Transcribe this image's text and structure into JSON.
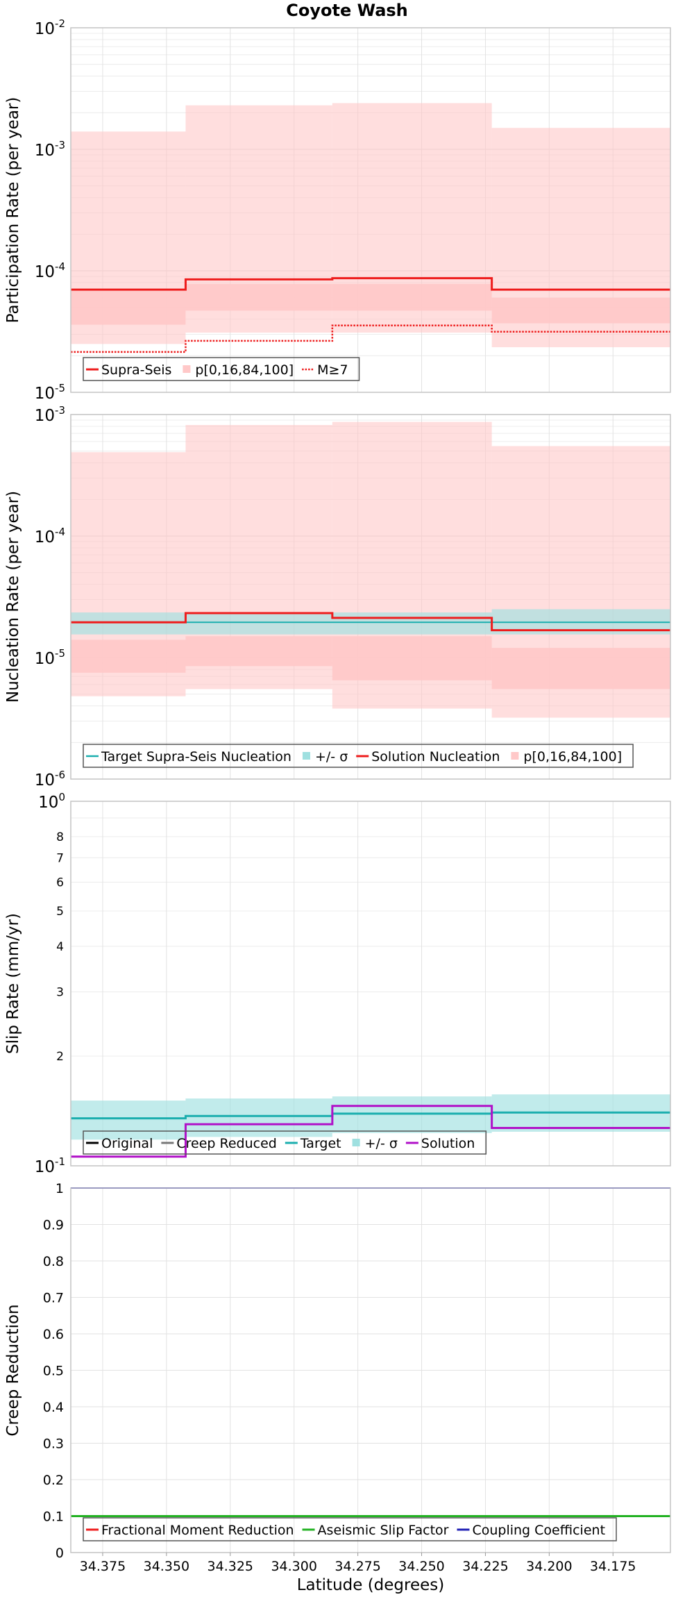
{
  "title": "Coyote Wash",
  "x_axis": {
    "label": "Latitude (degrees)",
    "reversed": true,
    "min": 34.1525,
    "max": 34.3875,
    "ticks": [
      34.375,
      34.35,
      34.325,
      34.3,
      34.275,
      34.25,
      34.225,
      34.2,
      34.175
    ],
    "tick_labels": [
      "34.375",
      "34.350",
      "34.325",
      "34.300",
      "34.275",
      "34.250",
      "34.225",
      "34.200",
      "34.175"
    ]
  },
  "colors": {
    "supra_seis": "#ee1c1c",
    "percentile_band": "#ffc8c8",
    "target": "#1aaeae",
    "target_band": "#9fe0e0",
    "solution_slip": "#b010c8",
    "aseismic": "#22b222",
    "coupling": "#1f1fb4",
    "original": "#000000",
    "creep_reduced": "#777777"
  },
  "segments": [
    {
      "x_start": 34.3875,
      "x_end": 34.3425
    },
    {
      "x_start": 34.3425,
      "x_end": 34.285
    },
    {
      "x_start": 34.285,
      "x_end": 34.2225
    },
    {
      "x_start": 34.2225,
      "x_end": 34.1525
    }
  ],
  "chart_data": [
    {
      "type": "line",
      "name": "participation",
      "ylabel": "Participation Rate (per year)",
      "yscale": "log",
      "ylim": [
        1e-05,
        0.01
      ],
      "y_tick_labels": [
        "10^-5",
        "10^-4",
        "10^-3",
        "10^-2"
      ],
      "legend": [
        "Supra-Seis",
        "p[0,16,84,100]",
        "M≥7"
      ],
      "series": [
        {
          "name": "Supra-Seis",
          "values": [
            7e-05,
            8.5e-05,
            8.7e-05,
            7e-05
          ]
        },
        {
          "name": "M≥7",
          "values": [
            2.15e-05,
            2.65e-05,
            3.55e-05,
            3.15e-05
          ]
        }
      ],
      "band_outer": {
        "low": [
          2.5e-05,
          3.1e-05,
          3.1e-05,
          2.35e-05
        ],
        "high": [
          0.0014,
          0.0023,
          0.0024,
          0.0015
        ]
      },
      "band_inner": {
        "low": [
          3.6e-05,
          4.7e-05,
          4.7e-05,
          3.7e-05
        ],
        "high": [
          7e-05,
          7.8e-05,
          7.8e-05,
          6e-05
        ]
      }
    },
    {
      "type": "line",
      "name": "nucleation",
      "ylabel": "Nucleation Rate (per year)",
      "yscale": "log",
      "ylim": [
        1e-06,
        0.001
      ],
      "y_tick_labels": [
        "10^-6",
        "10^-5",
        "10^-4",
        "10^-3"
      ],
      "legend": [
        "Target Supra-Seis Nucleation",
        "+/- σ",
        "Solution Nucleation",
        "p[0,16,84,100]"
      ],
      "series": [
        {
          "name": "Target Supra-Seis Nucleation",
          "values": [
            1.95e-05,
            1.95e-05,
            1.95e-05,
            1.95e-05
          ]
        },
        {
          "name": "Solution Nucleation",
          "values": [
            1.95e-05,
            2.32e-05,
            2.12e-05,
            1.68e-05
          ]
        }
      ],
      "sigma_band": {
        "low": [
          1.55e-05,
          1.55e-05,
          1.55e-05,
          1.55e-05
        ],
        "high": [
          2.35e-05,
          2.35e-05,
          2.35e-05,
          2.5e-05
        ]
      },
      "band_outer": {
        "low": [
          4.8e-06,
          5.5e-06,
          3.8e-06,
          3.2e-06
        ],
        "high": [
          0.00049,
          0.00082,
          0.00087,
          0.00055
        ]
      },
      "band_inner": {
        "low": [
          7.5e-06,
          8.5e-06,
          6.5e-06,
          5.5e-06
        ],
        "high": [
          1.4e-05,
          1.5e-05,
          1.5e-05,
          1.2e-05
        ]
      }
    },
    {
      "type": "line",
      "name": "slip",
      "ylabel": "Slip Rate (mm/yr)",
      "yscale": "log",
      "ylim": [
        0.1,
        1
      ],
      "y_tick_values": [
        0.1,
        0.2,
        0.3,
        0.4,
        0.5,
        0.6,
        0.7,
        0.8,
        1
      ],
      "y_tick_labels": [
        "10^-1",
        "2",
        "3",
        "4",
        "5",
        "6",
        "7",
        "8",
        "10^0"
      ],
      "legend": [
        "Original",
        "Creep Reduced",
        "Target",
        "+/- σ",
        "Solution"
      ],
      "series": [
        {
          "name": "Target",
          "values": [
            0.135,
            0.137,
            0.139,
            0.14
          ]
        },
        {
          "name": "Solution",
          "values": [
            0.106,
            0.13,
            0.146,
            0.127
          ]
        }
      ],
      "sigma_band": {
        "low": [
          0.118,
          0.12,
          0.123,
          0.124
        ],
        "high": [
          0.151,
          0.153,
          0.155,
          0.157
        ]
      }
    },
    {
      "type": "line",
      "name": "creep",
      "ylabel": "Creep Reduction",
      "yscale": "linear",
      "ylim": [
        0,
        1
      ],
      "y_tick_labels": [
        "0",
        "0.1",
        "0.2",
        "0.3",
        "0.4",
        "0.5",
        "0.6",
        "0.7",
        "0.8",
        "0.9",
        "1"
      ],
      "legend": [
        "Fractional Moment Reduction",
        "Aseismic Slip Factor",
        "Coupling Coefficient"
      ],
      "series": [
        {
          "name": "Aseismic Slip Factor",
          "values": [
            0.1,
            0.1,
            0.1,
            0.1
          ]
        },
        {
          "name": "Coupling Coefficient",
          "values": [
            1,
            1,
            1,
            1
          ]
        }
      ]
    }
  ]
}
